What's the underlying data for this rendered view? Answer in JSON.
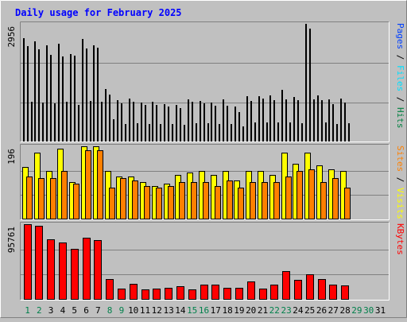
{
  "chart_data": {
    "type": "bar",
    "title": "Daily usage for February 2025",
    "categories": [
      "1",
      "2",
      "3",
      "4",
      "5",
      "6",
      "7",
      "8",
      "9",
      "10",
      "11",
      "12",
      "13",
      "14",
      "15",
      "16",
      "17",
      "18",
      "19",
      "20",
      "21",
      "22",
      "23",
      "24",
      "25",
      "26",
      "27",
      "28",
      "29",
      "30",
      "31"
    ],
    "weekend_days": [
      "1",
      "2",
      "8",
      "9",
      "15",
      "16",
      "22",
      "23",
      "29",
      "30"
    ],
    "panels": [
      {
        "max_label": "2956",
        "ylim": [
          0,
          2956
        ],
        "grid": true,
        "axis_label": {
          "parts": [
            "Pages",
            "Files",
            "Hits"
          ],
          "separator": " / "
        },
        "series": [
          {
            "name": "Hits",
            "color": "#008040",
            "values": [
              2600,
              2520,
              2420,
              2460,
              2190,
              2580,
              2410,
              1320,
              1030,
              1080,
              980,
              1000,
              940,
              910,
              1060,
              1020,
              970,
              1050,
              880,
              1130,
              1140,
              1160,
              1290,
              1120,
              2956,
              1160,
              1050,
              1080,
              0,
              0,
              0
            ]
          },
          {
            "name": "Files",
            "color": "#00e0ff",
            "values": [
              2390,
              2320,
              2170,
              2140,
              2150,
              2340,
              2360,
              1170,
              950,
              990,
              910,
              910,
              880,
              830,
              990,
              960,
              890,
              900,
              740,
              1020,
              1080,
              1030,
              1060,
              1030,
              2840,
              1040,
              940,
              980,
              0,
              0,
              0
            ]
          },
          {
            "name": "Pages",
            "color": "#0040ff",
            "values": [
              1000,
              980,
              950,
              1000,
              920,
              1020,
              1000,
              560,
              430,
              460,
              430,
              440,
              430,
              410,
              460,
              450,
              430,
              440,
              380,
              470,
              480,
              470,
              480,
              460,
              1050,
              470,
              440,
              450,
              0,
              0,
              0
            ]
          }
        ]
      },
      {
        "max_label": "196",
        "ylim": [
          0,
          196
        ],
        "grid": true,
        "axis_label": {
          "parts": [
            "Sites",
            "Visits"
          ],
          "separator": " / "
        },
        "series": [
          {
            "name": "Visits",
            "color": "#ffff00",
            "values": [
              140,
              180,
              130,
              190,
              100,
              196,
              196,
              130,
              115,
              115,
              100,
              90,
              95,
              120,
              125,
              130,
              120,
              130,
              105,
              130,
              130,
              120,
              180,
              150,
              180,
              145,
              135,
              130,
              0,
              0,
              0
            ]
          },
          {
            "name": "Sites",
            "color": "#ff8000",
            "values": [
              115,
              110,
              110,
              130,
              95,
              185,
              185,
              85,
              110,
              105,
              90,
              85,
              90,
              100,
              100,
              100,
              90,
              105,
              85,
              100,
              100,
              100,
              115,
              130,
              135,
              100,
              110,
              85,
              0,
              0,
              0
            ]
          }
        ]
      },
      {
        "max_label": "95761",
        "ylim": [
          0,
          95761
        ],
        "grid": true,
        "axis_label": {
          "parts": [
            "KBytes"
          ],
          "separator": ""
        },
        "series": [
          {
            "name": "KBytes",
            "color": "#ff0000",
            "values": [
              95761,
              94000,
              77000,
              73000,
              65000,
              79000,
              76000,
              26000,
              14000,
              20000,
              13000,
              14000,
              15000,
              17000,
              13000,
              19000,
              19000,
              15000,
              15000,
              23000,
              14000,
              19000,
              36000,
              25000,
              32000,
              26000,
              19000,
              18000,
              0,
              0,
              0
            ]
          }
        ]
      }
    ]
  },
  "colors": {
    "background": "#c0c0c0",
    "title": "#0000ff",
    "weekday_label": "#000000",
    "weekend_label": "#00804b",
    "gridline": "#808080"
  }
}
